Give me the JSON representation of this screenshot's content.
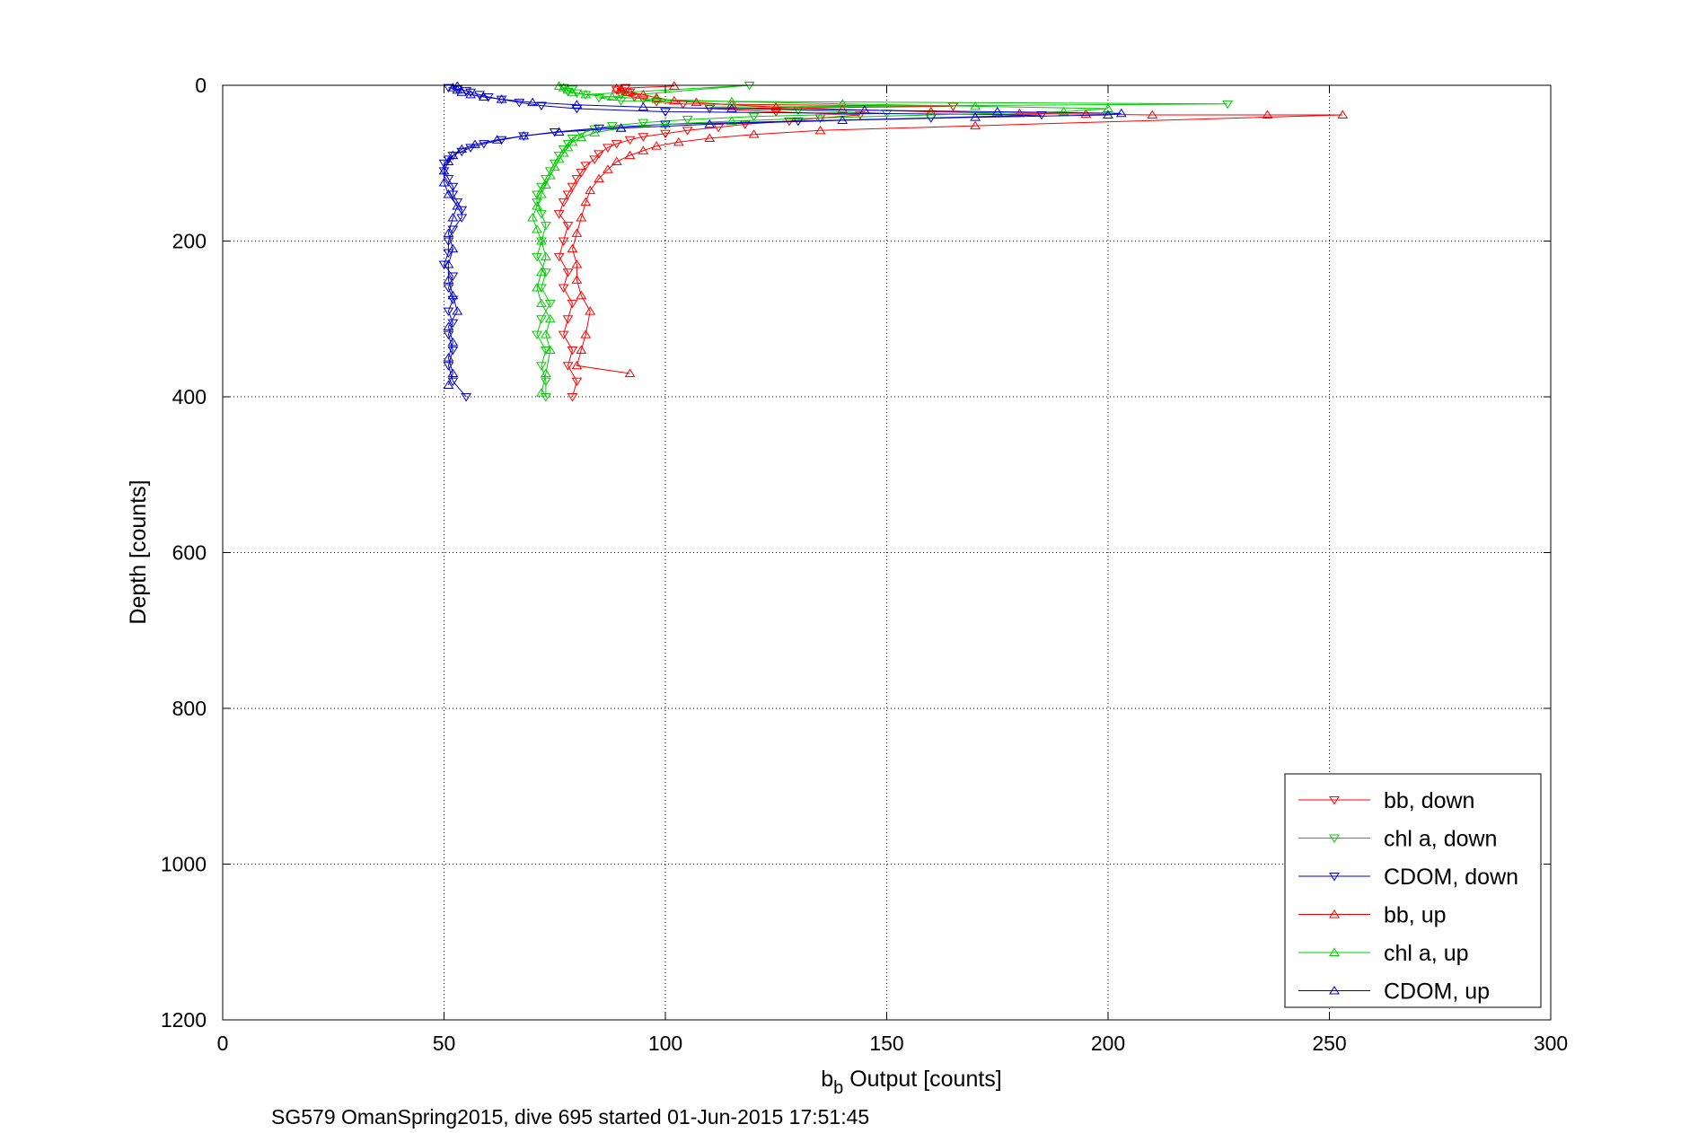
{
  "chart_data": {
    "type": "scatter",
    "xlabel_main": "b",
    "xlabel_sub": "b",
    "xlabel_rest": " Output [counts]",
    "ylabel": "Depth [counts]",
    "caption": "SG579 OmanSpring2015, dive 695 started 01-Jun-2015 17:51:45",
    "xlim": [
      0,
      300
    ],
    "ylim": [
      0,
      1200
    ],
    "y_reversed": true,
    "grid": true,
    "legend_position": "bottom-right",
    "xticks": [
      "0",
      "50",
      "100",
      "150",
      "200",
      "250",
      "300"
    ],
    "yticks": [
      "0",
      "200",
      "400",
      "600",
      "800",
      "1000",
      "1200"
    ],
    "series": [
      {
        "name": "bb, down",
        "color": "#ff0000",
        "marker": "triangle-down",
        "points": [
          [
            91,
            3
          ],
          [
            89,
            6
          ],
          [
            92,
            9
          ],
          [
            90,
            12
          ],
          [
            93,
            15
          ],
          [
            95,
            18
          ],
          [
            98,
            21
          ],
          [
            104,
            24
          ],
          [
            165,
            27
          ],
          [
            110,
            30
          ],
          [
            125,
            34
          ],
          [
            144,
            38
          ],
          [
            135,
            42
          ],
          [
            128,
            46
          ],
          [
            118,
            50
          ],
          [
            112,
            54
          ],
          [
            105,
            58
          ],
          [
            100,
            62
          ],
          [
            95,
            66
          ],
          [
            92,
            70
          ],
          [
            89,
            75
          ],
          [
            87,
            80
          ],
          [
            85,
            88
          ],
          [
            84,
            95
          ],
          [
            82,
            103
          ],
          [
            81,
            112
          ],
          [
            80,
            120
          ],
          [
            79,
            130
          ],
          [
            78,
            140
          ],
          [
            77,
            150
          ],
          [
            76,
            165
          ],
          [
            78,
            180
          ],
          [
            77,
            200
          ],
          [
            76,
            220
          ],
          [
            78,
            240
          ],
          [
            77,
            260
          ],
          [
            79,
            280
          ],
          [
            78,
            300
          ],
          [
            77,
            320
          ],
          [
            79,
            340
          ],
          [
            78,
            360
          ],
          [
            80,
            380
          ],
          [
            79,
            400
          ]
        ]
      },
      {
        "name": "chl a, down",
        "color": "#00cc00",
        "marker": "triangle-down",
        "points": [
          [
            77,
            3
          ],
          [
            79,
            5
          ],
          [
            78,
            8
          ],
          [
            80,
            10
          ],
          [
            82,
            12
          ],
          [
            119,
            0
          ],
          [
            85,
            16
          ],
          [
            90,
            20
          ],
          [
            227,
            24
          ],
          [
            110,
            28
          ],
          [
            130,
            32
          ],
          [
            150,
            36
          ],
          [
            120,
            40
          ],
          [
            105,
            44
          ],
          [
            95,
            48
          ],
          [
            88,
            52
          ],
          [
            84,
            56
          ],
          [
            81,
            62
          ],
          [
            79,
            68
          ],
          [
            78,
            75
          ],
          [
            77,
            82
          ],
          [
            76,
            90
          ],
          [
            75,
            100
          ],
          [
            74,
            110
          ],
          [
            73,
            120
          ],
          [
            72,
            130
          ],
          [
            71,
            140
          ],
          [
            71,
            150
          ],
          [
            72,
            165
          ],
          [
            73,
            180
          ],
          [
            72,
            200
          ],
          [
            71,
            220
          ],
          [
            73,
            240
          ],
          [
            72,
            260
          ],
          [
            74,
            280
          ],
          [
            72,
            300
          ],
          [
            71,
            320
          ],
          [
            73,
            340
          ],
          [
            72,
            360
          ],
          [
            73,
            380
          ],
          [
            73,
            400
          ]
        ]
      },
      {
        "name": "CDOM, down",
        "color": "#0000cc",
        "marker": "triangle-down",
        "points": [
          [
            51,
            3
          ],
          [
            53,
            5
          ],
          [
            55,
            7
          ],
          [
            56,
            9
          ],
          [
            58,
            12
          ],
          [
            60,
            15
          ],
          [
            63,
            18
          ],
          [
            67,
            22
          ],
          [
            72,
            26
          ],
          [
            80,
            30
          ],
          [
            100,
            34
          ],
          [
            185,
            38
          ],
          [
            160,
            42
          ],
          [
            130,
            46
          ],
          [
            100,
            50
          ],
          [
            85,
            55
          ],
          [
            75,
            60
          ],
          [
            68,
            65
          ],
          [
            63,
            70
          ],
          [
            59,
            75
          ],
          [
            56,
            80
          ],
          [
            54,
            85
          ],
          [
            52,
            90
          ],
          [
            51,
            95
          ],
          [
            50,
            100
          ],
          [
            50,
            110
          ],
          [
            51,
            120
          ],
          [
            52,
            130
          ],
          [
            52,
            140
          ],
          [
            53,
            150
          ],
          [
            54,
            160
          ],
          [
            54,
            170
          ],
          [
            52,
            185
          ],
          [
            51,
            200
          ],
          [
            51,
            215
          ],
          [
            50,
            230
          ],
          [
            52,
            245
          ],
          [
            51,
            260
          ],
          [
            52,
            275
          ],
          [
            51,
            290
          ],
          [
            52,
            305
          ],
          [
            51,
            320
          ],
          [
            52,
            340
          ],
          [
            51,
            360
          ],
          [
            52,
            380
          ],
          [
            55,
            400
          ]
        ]
      },
      {
        "name": "bb, up",
        "color": "#ff0000",
        "marker": "triangle-up",
        "points": [
          [
            92,
            370
          ],
          [
            80,
            360
          ],
          [
            81,
            340
          ],
          [
            82,
            320
          ],
          [
            83,
            290
          ],
          [
            81,
            270
          ],
          [
            80,
            250
          ],
          [
            80,
            230
          ],
          [
            79,
            210
          ],
          [
            80,
            190
          ],
          [
            81,
            170
          ],
          [
            82,
            150
          ],
          [
            83,
            135
          ],
          [
            85,
            120
          ],
          [
            87,
            108
          ],
          [
            89,
            98
          ],
          [
            92,
            90
          ],
          [
            95,
            84
          ],
          [
            98,
            78
          ],
          [
            103,
            73
          ],
          [
            110,
            68
          ],
          [
            120,
            63
          ],
          [
            135,
            58
          ],
          [
            170,
            52
          ],
          [
            253,
            38
          ],
          [
            236,
            38
          ],
          [
            210,
            38
          ],
          [
            195,
            37
          ],
          [
            180,
            36
          ],
          [
            160,
            34
          ],
          [
            140,
            31
          ],
          [
            125,
            28
          ],
          [
            115,
            25
          ],
          [
            107,
            22
          ],
          [
            102,
            20
          ],
          [
            98,
            16
          ],
          [
            95,
            12
          ],
          [
            92,
            9
          ],
          [
            90,
            6
          ],
          [
            89,
            4
          ],
          [
            102,
            1
          ]
        ]
      },
      {
        "name": "chl a, up",
        "color": "#00cc00",
        "marker": "triangle-up",
        "points": [
          [
            72,
            395
          ],
          [
            73,
            370
          ],
          [
            74,
            340
          ],
          [
            73,
            320
          ],
          [
            74,
            300
          ],
          [
            72,
            280
          ],
          [
            71,
            260
          ],
          [
            72,
            240
          ],
          [
            73,
            220
          ],
          [
            72,
            200
          ],
          [
            71,
            185
          ],
          [
            70,
            170
          ],
          [
            71,
            155
          ],
          [
            72,
            140
          ],
          [
            73,
            128
          ],
          [
            74,
            116
          ],
          [
            75,
            105
          ],
          [
            76,
            95
          ],
          [
            77,
            87
          ],
          [
            78,
            80
          ],
          [
            79,
            73
          ],
          [
            81,
            67
          ],
          [
            84,
            61
          ],
          [
            90,
            55
          ],
          [
            100,
            50
          ],
          [
            115,
            46
          ],
          [
            135,
            42
          ],
          [
            160,
            38
          ],
          [
            190,
            34
          ],
          [
            200,
            30
          ],
          [
            170,
            27
          ],
          [
            140,
            24
          ],
          [
            115,
            21
          ],
          [
            98,
            18
          ],
          [
            88,
            15
          ],
          [
            82,
            12
          ],
          [
            79,
            9
          ],
          [
            78,
            6
          ],
          [
            77,
            3
          ],
          [
            76,
            1
          ]
        ]
      },
      {
        "name": "CDOM, up",
        "color": "#0000cc",
        "marker": "triangle-up",
        "points": [
          [
            51,
            385
          ],
          [
            52,
            370
          ],
          [
            51,
            350
          ],
          [
            52,
            330
          ],
          [
            51,
            310
          ],
          [
            53,
            290
          ],
          [
            52,
            270
          ],
          [
            51,
            250
          ],
          [
            51,
            230
          ],
          [
            52,
            210
          ],
          [
            51,
            190
          ],
          [
            52,
            170
          ],
          [
            53,
            155
          ],
          [
            51,
            140
          ],
          [
            50,
            125
          ],
          [
            50,
            110
          ],
          [
            51,
            98
          ],
          [
            52,
            90
          ],
          [
            54,
            82
          ],
          [
            57,
            76
          ],
          [
            62,
            70
          ],
          [
            68,
            65
          ],
          [
            76,
            60
          ],
          [
            90,
            55
          ],
          [
            110,
            50
          ],
          [
            140,
            45
          ],
          [
            170,
            41
          ],
          [
            200,
            38
          ],
          [
            203,
            36
          ],
          [
            175,
            34
          ],
          [
            145,
            32
          ],
          [
            115,
            30
          ],
          [
            95,
            28
          ],
          [
            80,
            25
          ],
          [
            70,
            22
          ],
          [
            63,
            18
          ],
          [
            59,
            15
          ],
          [
            56,
            12
          ],
          [
            54,
            9
          ],
          [
            53,
            6
          ],
          [
            52,
            3
          ],
          [
            53,
            1
          ]
        ]
      }
    ]
  }
}
